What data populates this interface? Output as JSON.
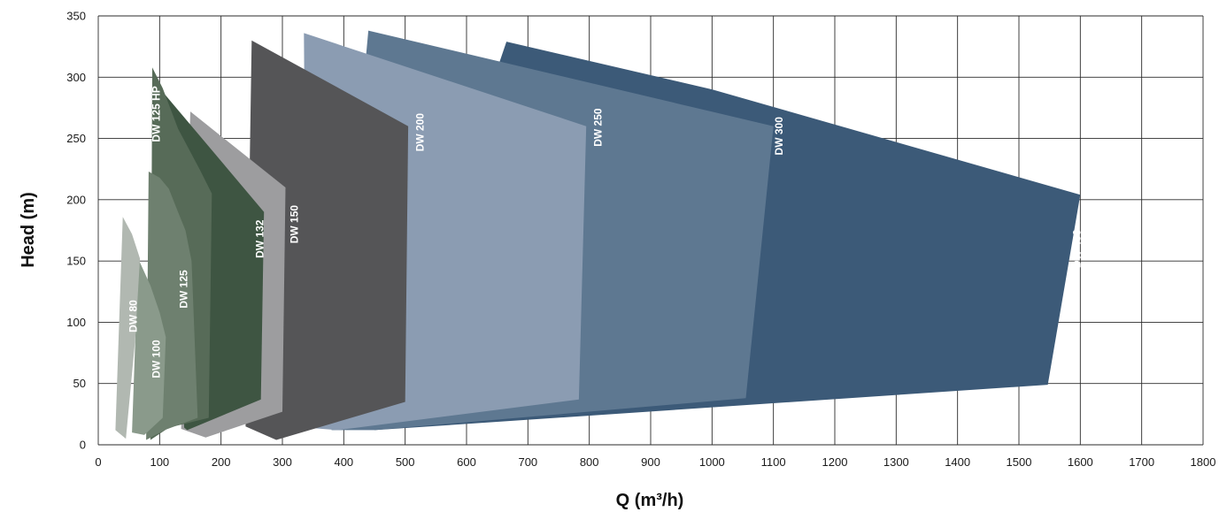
{
  "chart_data": {
    "type": "area",
    "title": "",
    "xlabel": "Q (m³/h)",
    "ylabel": "Head (m)",
    "xlim": [
      0,
      1800
    ],
    "ylim": [
      0,
      350
    ],
    "x_ticks": [
      0,
      100,
      200,
      300,
      400,
      500,
      600,
      700,
      800,
      900,
      1000,
      1100,
      1200,
      1300,
      1400,
      1500,
      1600,
      1700,
      1800
    ],
    "y_ticks": [
      0,
      50,
      100,
      150,
      200,
      250,
      300,
      350
    ],
    "grid": true,
    "series": [
      {
        "name": "DW 400",
        "color": "#3c5a78",
        "label_at": [
          1600,
          160
        ],
        "points": [
          [
            665,
            329
          ],
          [
            1000,
            290
          ],
          [
            1600,
            204
          ],
          [
            1547,
            49
          ],
          [
            450,
            12
          ]
        ]
      },
      {
        "name": "DW 300",
        "color": "#5e7891",
        "label_at": [
          1115,
          252
        ],
        "points": [
          [
            440,
            338
          ],
          [
            1100,
            260
          ],
          [
            1055,
            38
          ],
          [
            450,
            12
          ],
          [
            380,
            12
          ]
        ]
      },
      {
        "name": "DW 250",
        "color": "#8b9cb2",
        "label_at": [
          820,
          259
        ],
        "points": [
          [
            335,
            336
          ],
          [
            795,
            260
          ],
          [
            783,
            37
          ],
          [
            390,
            12
          ],
          [
            340,
            14
          ]
        ]
      },
      {
        "name": "DW 200",
        "color": "#555557",
        "label_at": [
          530,
          255
        ],
        "points": [
          [
            250,
            330
          ],
          [
            505,
            260
          ],
          [
            500,
            35
          ],
          [
            290,
            4
          ],
          [
            240,
            15
          ]
        ]
      },
      {
        "name": "DW 150",
        "color": "#9d9d9f",
        "label_at": [
          325,
          180
        ],
        "points": [
          [
            150,
            272
          ],
          [
            305,
            210
          ],
          [
            300,
            27
          ],
          [
            175,
            6
          ],
          [
            135,
            13
          ]
        ]
      },
      {
        "name": "DW 132",
        "color": "#3e5542",
        "label_at": [
          269,
          168
        ],
        "points": [
          [
            105,
            288
          ],
          [
            270,
            190
          ],
          [
            265,
            37
          ],
          [
            145,
            12
          ],
          [
            140,
            14
          ]
        ]
      },
      {
        "name": "DW 125 HP",
        "color": "#576b58",
        "label_at": [
          100,
          270
        ],
        "points": [
          [
            88,
            308
          ],
          [
            105,
            291
          ],
          [
            130,
            258
          ],
          [
            165,
            225
          ],
          [
            185,
            205
          ],
          [
            180,
            22
          ],
          [
            115,
            14
          ],
          [
            85,
            4
          ]
        ]
      },
      {
        "name": "DW 125",
        "color": "#6e806f",
        "label_at": [
          145,
          127
        ],
        "points": [
          [
            82,
            223
          ],
          [
            100,
            218
          ],
          [
            115,
            209
          ],
          [
            130,
            190
          ],
          [
            142,
            175
          ],
          [
            152,
            150
          ],
          [
            162,
            22
          ],
          [
            108,
            12
          ],
          [
            78,
            4
          ]
        ]
      },
      {
        "name": "DW 100",
        "color": "#8a9a8b",
        "label_at": [
          100,
          70
        ],
        "points": [
          [
            65,
            152
          ],
          [
            85,
            130
          ],
          [
            100,
            108
          ],
          [
            110,
            88
          ],
          [
            105,
            22
          ],
          [
            75,
            8
          ],
          [
            55,
            10
          ]
        ]
      },
      {
        "name": "DW 80",
        "color": "#b1b8b1",
        "label_at": [
          63,
          105
        ],
        "points": [
          [
            40,
            186
          ],
          [
            55,
            172
          ],
          [
            68,
            152
          ],
          [
            60,
            85
          ],
          [
            45,
            5
          ],
          [
            28,
            12
          ]
        ]
      }
    ]
  }
}
